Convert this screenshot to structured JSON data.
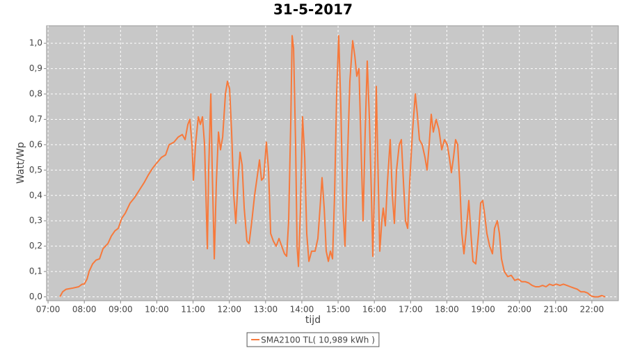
{
  "chart_data": {
    "type": "line",
    "title": "31-5-2017",
    "x_label": "tijd",
    "y_label": "Watt/Wp",
    "xlim": [
      6.96,
      22.73
    ],
    "ylim": [
      -0.015,
      1.069
    ],
    "grid": true,
    "legend": "bottom",
    "xticks": [
      {
        "value": 7,
        "label": "07:00"
      },
      {
        "value": 8,
        "label": "08:00"
      },
      {
        "value": 9,
        "label": "09:00"
      },
      {
        "value": 10,
        "label": "10:00"
      },
      {
        "value": 11,
        "label": "11:00"
      },
      {
        "value": 12,
        "label": "12:00"
      },
      {
        "value": 13,
        "label": "13:00"
      },
      {
        "value": 14,
        "label": "14:00"
      },
      {
        "value": 15,
        "label": "15:00"
      },
      {
        "value": 16,
        "label": "16:00"
      },
      {
        "value": 17,
        "label": "17:00"
      },
      {
        "value": 18,
        "label": "18:00"
      },
      {
        "value": 19,
        "label": "19:00"
      },
      {
        "value": 20,
        "label": "20:00"
      },
      {
        "value": 21,
        "label": "21:00"
      },
      {
        "value": 22,
        "label": "22:00"
      }
    ],
    "yticks": [
      {
        "value": 0,
        "label": "0,0"
      },
      {
        "value": 0.1,
        "label": "0,1"
      },
      {
        "value": 0.2,
        "label": "0,2"
      },
      {
        "value": 0.3,
        "label": "0,3"
      },
      {
        "value": 0.4,
        "label": "0,4"
      },
      {
        "value": 0.5,
        "label": "0,5"
      },
      {
        "value": 0.6,
        "label": "0,6"
      },
      {
        "value": 0.7,
        "label": "0,7"
      },
      {
        "value": 0.8,
        "label": "0,8"
      },
      {
        "value": 0.9,
        "label": "0,9"
      },
      {
        "value": 1,
        "label": "1,0"
      }
    ],
    "x": [
      7.326,
      7.403,
      7.499,
      7.691,
      7.844,
      7.94,
      7.998,
      8.074,
      8.132,
      8.228,
      8.324,
      8.42,
      8.515,
      8.65,
      8.746,
      8.842,
      8.937,
      9.033,
      9.129,
      9.264,
      9.379,
      9.513,
      9.647,
      9.762,
      9.897,
      10.012,
      10.127,
      10.242,
      10.338,
      10.472,
      10.587,
      10.702,
      10.779,
      10.856,
      10.913,
      10.971,
      11.009,
      11.067,
      11.144,
      11.201,
      11.259,
      11.316,
      11.355,
      11.393,
      11.431,
      11.489,
      11.527,
      11.585,
      11.642,
      11.7,
      11.757,
      11.815,
      11.892,
      11.949,
      12.007,
      12.064,
      12.122,
      12.179,
      12.237,
      12.295,
      12.352,
      12.41,
      12.486,
      12.544,
      12.621,
      12.697,
      12.774,
      12.832,
      12.889,
      12.947,
      13.023,
      13.081,
      13.139,
      13.215,
      13.292,
      13.369,
      13.445,
      13.522,
      13.58,
      13.637,
      13.695,
      13.733,
      13.772,
      13.829,
      13.868,
      13.906,
      13.963,
      14.021,
      14.079,
      14.136,
      14.194,
      14.27,
      14.366,
      14.443,
      14.501,
      14.558,
      14.616,
      14.673,
      14.731,
      14.788,
      14.846,
      14.903,
      14.961,
      15.018,
      15.076,
      15.134,
      15.191,
      15.249,
      15.325,
      15.402,
      15.46,
      15.517,
      15.575,
      15.632,
      15.69,
      15.747,
      15.805,
      15.863,
      15.92,
      15.958,
      16.016,
      16.054,
      16.093,
      16.15,
      16.208,
      16.246,
      16.304,
      16.361,
      16.438,
      16.496,
      16.553,
      16.611,
      16.687,
      16.745,
      16.803,
      16.86,
      16.918,
      16.975,
      17.052,
      17.129,
      17.186,
      17.244,
      17.32,
      17.397,
      17.455,
      17.512,
      17.57,
      17.627,
      17.704,
      17.781,
      17.858,
      17.934,
      18.011,
      18.069,
      18.126,
      18.184,
      18.241,
      18.299,
      18.356,
      18.414,
      18.471,
      18.529,
      18.606,
      18.663,
      18.721,
      18.798,
      18.874,
      18.932,
      18.989,
      19.047,
      19.104,
      19.181,
      19.258,
      19.315,
      19.392,
      19.45,
      19.507,
      19.584,
      19.68,
      19.776,
      19.872,
      19.968,
      20.064,
      20.16,
      20.255,
      20.351,
      20.447,
      20.543,
      20.639,
      20.735,
      20.831,
      20.927,
      21.023,
      21.119,
      21.215,
      21.311,
      21.406,
      21.502,
      21.598,
      21.694,
      21.79,
      21.886,
      21.982,
      22.078,
      22.174,
      22.27,
      22.366
    ],
    "series": [
      {
        "name": "SMA2100 TL( 10,989 kWh )",
        "color": "#f7793b",
        "values": [
          0,
          0.02,
          0.03,
          0.035,
          0.04,
          0.05,
          0.05,
          0.07,
          0.1,
          0.13,
          0.145,
          0.15,
          0.19,
          0.21,
          0.24,
          0.26,
          0.27,
          0.31,
          0.33,
          0.37,
          0.39,
          0.42,
          0.45,
          0.48,
          0.51,
          0.53,
          0.55,
          0.56,
          0.6,
          0.61,
          0.63,
          0.64,
          0.62,
          0.68,
          0.7,
          0.6,
          0.46,
          0.6,
          0.71,
          0.68,
          0.71,
          0.6,
          0.4,
          0.19,
          0.5,
          0.8,
          0.5,
          0.15,
          0.45,
          0.65,
          0.58,
          0.63,
          0.8,
          0.85,
          0.82,
          0.65,
          0.4,
          0.29,
          0.45,
          0.57,
          0.52,
          0.35,
          0.22,
          0.21,
          0.3,
          0.4,
          0.48,
          0.54,
          0.46,
          0.47,
          0.61,
          0.5,
          0.25,
          0.22,
          0.2,
          0.23,
          0.2,
          0.17,
          0.16,
          0.3,
          0.7,
          1.03,
          0.98,
          0.6,
          0.2,
          0.12,
          0.35,
          0.71,
          0.55,
          0.25,
          0.14,
          0.18,
          0.18,
          0.23,
          0.35,
          0.47,
          0.35,
          0.18,
          0.14,
          0.18,
          0.15,
          0.4,
          0.8,
          1.03,
          0.75,
          0.35,
          0.2,
          0.5,
          0.85,
          1.01,
          0.95,
          0.87,
          0.9,
          0.6,
          0.3,
          0.65,
          0.93,
          0.7,
          0.4,
          0.16,
          0.5,
          0.83,
          0.55,
          0.18,
          0.3,
          0.35,
          0.28,
          0.45,
          0.62,
          0.4,
          0.29,
          0.5,
          0.6,
          0.62,
          0.45,
          0.3,
          0.27,
          0.45,
          0.65,
          0.8,
          0.72,
          0.62,
          0.6,
          0.55,
          0.5,
          0.6,
          0.72,
          0.65,
          0.7,
          0.66,
          0.58,
          0.62,
          0.6,
          0.55,
          0.49,
          0.55,
          0.62,
          0.6,
          0.45,
          0.25,
          0.17,
          0.25,
          0.38,
          0.25,
          0.14,
          0.13,
          0.25,
          0.37,
          0.38,
          0.32,
          0.25,
          0.2,
          0.17,
          0.27,
          0.3,
          0.25,
          0.15,
          0.1,
          0.08,
          0.085,
          0.065,
          0.07,
          0.06,
          0.06,
          0.055,
          0.045,
          0.04,
          0.04,
          0.045,
          0.04,
          0.05,
          0.045,
          0.05,
          0.045,
          0.05,
          0.045,
          0.04,
          0.035,
          0.03,
          0.02,
          0.02,
          0.015,
          0.003,
          0,
          0,
          0.005,
          0
        ]
      }
    ]
  }
}
